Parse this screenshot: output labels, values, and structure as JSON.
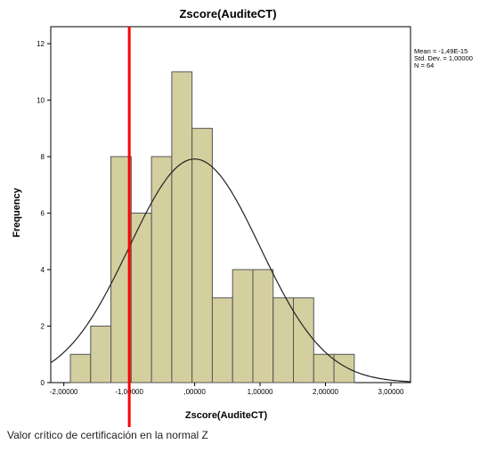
{
  "chart_data": {
    "type": "bar",
    "title": "Zscore(AuditeCT)",
    "xlabel": "Zscore(AuditeCT)",
    "ylabel": "Frequency",
    "xlim": [
      -2.2,
      3.3
    ],
    "ylim": [
      0,
      12.6
    ],
    "bin_width": 0.31,
    "bin_start": -1.9,
    "values": [
      1,
      2,
      8,
      6,
      8,
      11,
      9,
      3,
      4,
      4,
      3,
      3,
      1,
      1
    ],
    "xticks": [
      -2,
      -1,
      0,
      1,
      2,
      3
    ],
    "xtick_labels": [
      "-2,00000",
      "-1,00000",
      ",00000",
      "1,00000",
      "2,00000",
      "3,00000"
    ],
    "yticks": [
      0,
      2,
      4,
      6,
      8,
      10,
      12
    ],
    "ytick_labels": [
      "0",
      "2",
      "4",
      "6",
      "8",
      "10",
      "12"
    ],
    "stats": [
      "Mean = -1,49E-15",
      "Std. Dev. = 1,00000",
      "N = 64"
    ],
    "normal_curve": {
      "mean": 0,
      "sd": 1,
      "n": 64
    },
    "critical_line": {
      "x": -1.0,
      "label": "Valor crítico de certificación en la normal Z"
    },
    "colors": {
      "bar": "#d4cf9e",
      "bar_stroke": "#555555",
      "curve": "#222222",
      "critical_line": "#ff0000",
      "frame": "#000000"
    },
    "grid": false
  }
}
